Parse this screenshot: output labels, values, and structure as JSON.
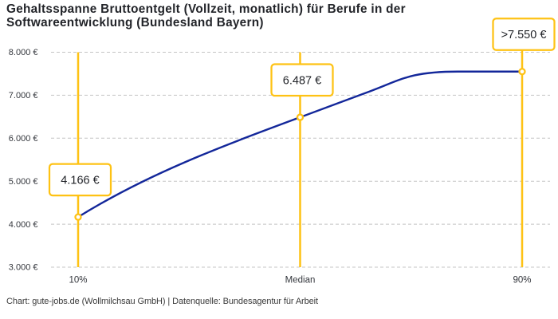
{
  "chart_data": {
    "type": "line",
    "title": "Gehaltsspanne Bruttoentgelt (Vollzeit, monatlich) für Berufe in der Softwareentwicklung (Bundesland Bayern)",
    "categories": [
      "10%",
      "Median",
      "90%"
    ],
    "values": [
      4166,
      6487,
      7550
    ],
    "point_labels": [
      "4.166 €",
      "6.487 €",
      ">7.550 €"
    ],
    "y_ticks": [
      {
        "value": 8000,
        "label": "8.000 €"
      },
      {
        "value": 7000,
        "label": "7.000 €"
      },
      {
        "value": 6000,
        "label": "6.000 €"
      },
      {
        "value": 5000,
        "label": "5.000 €"
      },
      {
        "value": 4000,
        "label": "4.000 €"
      },
      {
        "value": 3000,
        "label": "3.000 €"
      }
    ],
    "ylim": [
      3000,
      8000
    ],
    "xlabel": "",
    "ylabel": "",
    "grid": "horizontal-dashed",
    "legend": "none",
    "footer": "Chart: gute-jobs.de (Wollmilchsau GmbH) | Datenquelle: Bundesagentur für Arbeit"
  },
  "colors": {
    "background": "#FFFFFF",
    "accent_yellow": "#FEC214",
    "line_blue": "#13279A",
    "grid_gray": "#C4C4C4",
    "title_text": "#222429",
    "tick_text": "#33363C",
    "value_text": "#1F2126",
    "footer_text": "#3A3A3A",
    "label_box_fill": "#FFFFFF"
  }
}
